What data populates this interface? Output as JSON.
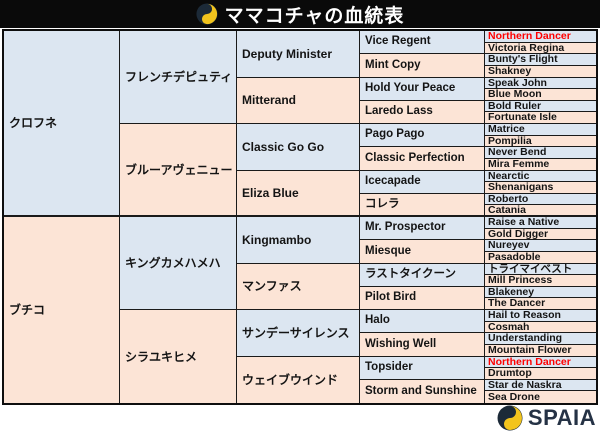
{
  "title": {
    "text": "ママコチャの血統表"
  },
  "brand": {
    "name": "SPAIA"
  },
  "colors": {
    "cell_blue": "#dce6f1",
    "cell_pink": "#fce4d6",
    "highlight_red": "#ff0000",
    "title_bar_bg": "#0a0a0a",
    "logo_yellow": "#f2c41d",
    "logo_navy": "#1c2a38",
    "brand_text": "#253245"
  },
  "pedigree": {
    "gen1": [
      {
        "name": "クロフネ"
      },
      {
        "name": "ブチコ"
      }
    ],
    "gen2": [
      {
        "name": "フレンチデピュティ"
      },
      {
        "name": "ブルーアヴェニュー"
      },
      {
        "name": "キングカメハメハ"
      },
      {
        "name": "シラユキヒメ"
      }
    ],
    "gen3": [
      {
        "name": "Deputy Minister"
      },
      {
        "name": "Mitterand"
      },
      {
        "name": "Classic Go Go"
      },
      {
        "name": "Eliza Blue"
      },
      {
        "name": "Kingmambo"
      },
      {
        "name": "マンファス"
      },
      {
        "name": "サンデーサイレンス"
      },
      {
        "name": "ウェイブウインド"
      }
    ],
    "gen4": [
      {
        "name": "Vice Regent"
      },
      {
        "name": "Mint Copy"
      },
      {
        "name": "Hold Your Peace"
      },
      {
        "name": "Laredo Lass"
      },
      {
        "name": "Pago Pago"
      },
      {
        "name": "Classic Perfection"
      },
      {
        "name": "Icecapade"
      },
      {
        "name": "コレラ"
      },
      {
        "name": "Mr. Prospector"
      },
      {
        "name": "Miesque"
      },
      {
        "name": "ラストタイクーン"
      },
      {
        "name": "Pilot Bird"
      },
      {
        "name": "Halo"
      },
      {
        "name": "Wishing Well"
      },
      {
        "name": "Topsider"
      },
      {
        "name": "Storm and Sunshine"
      }
    ],
    "gen5": [
      {
        "name": "Northern Dancer",
        "red": true
      },
      {
        "name": "Victoria Regina"
      },
      {
        "name": "Bunty's Flight"
      },
      {
        "name": "Shakney"
      },
      {
        "name": "Speak John"
      },
      {
        "name": "Blue Moon"
      },
      {
        "name": "Bold Ruler"
      },
      {
        "name": "Fortunate Isle"
      },
      {
        "name": "Matrice"
      },
      {
        "name": "Pompilia"
      },
      {
        "name": "Never Bend"
      },
      {
        "name": "Mira Femme"
      },
      {
        "name": "Nearctic"
      },
      {
        "name": "Shenanigans"
      },
      {
        "name": "Roberto"
      },
      {
        "name": "Catania"
      },
      {
        "name": "Raise a Native"
      },
      {
        "name": "Gold Digger"
      },
      {
        "name": "Nureyev"
      },
      {
        "name": "Pasadoble"
      },
      {
        "name": "トライマイベスト"
      },
      {
        "name": "Mill Princess"
      },
      {
        "name": "Blakeney"
      },
      {
        "name": "The Dancer"
      },
      {
        "name": "Hail to Reason"
      },
      {
        "name": "Cosmah"
      },
      {
        "name": "Understanding"
      },
      {
        "name": "Mountain Flower"
      },
      {
        "name": "Northern Dancer",
        "red": true
      },
      {
        "name": "Drumtop"
      },
      {
        "name": "Star de Naskra"
      },
      {
        "name": "Sea Drone"
      }
    ]
  }
}
